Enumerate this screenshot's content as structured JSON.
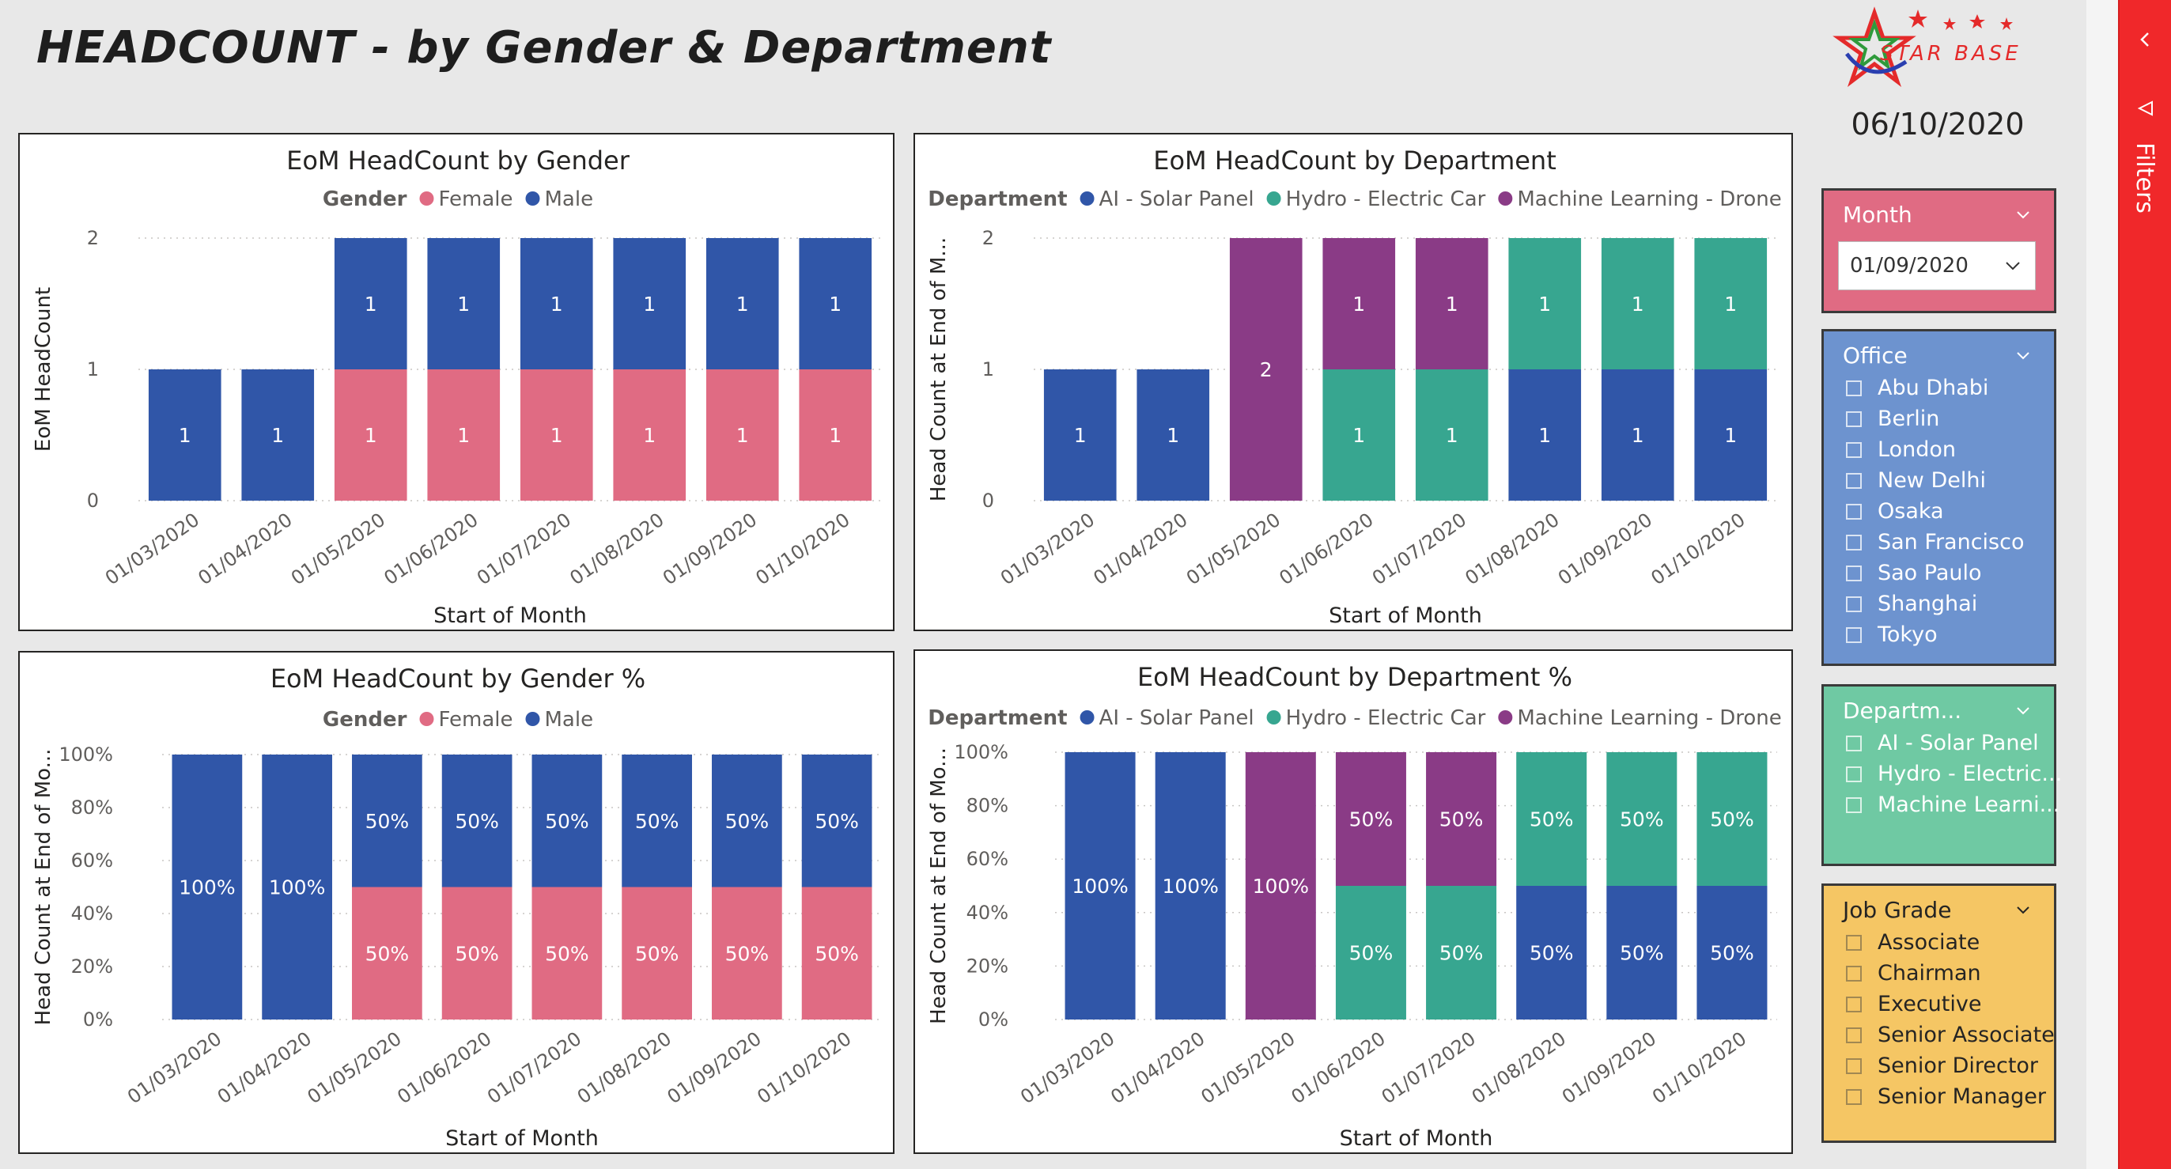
{
  "page": {
    "title": "HEADCOUNT - by Gender & Department",
    "date": "06/10/2020"
  },
  "logo": {
    "text": "STAR BASE"
  },
  "months": [
    "01/03/2020",
    "01/04/2020",
    "01/05/2020",
    "01/06/2020",
    "01/07/2020",
    "01/08/2020",
    "01/09/2020",
    "01/10/2020"
  ],
  "colors": {
    "female": "#e06b83",
    "male": "#3056a8",
    "ai": "#3056a8",
    "hydro": "#37a690",
    "ml": "#8a3b86"
  },
  "charts": {
    "gender": {
      "title": "EoM HeadCount by Gender",
      "legend_title": "Gender",
      "legend": [
        "Female",
        "Male"
      ],
      "ylabel": "EoM HeadCount",
      "xlabel": "Start of Month",
      "yticks": [
        "0",
        "1",
        "2"
      ]
    },
    "dept": {
      "title": "EoM HeadCount by Department",
      "legend_title": "Department",
      "legend": [
        "AI - Solar Panel",
        "Hydro - Electric Car",
        "Machine Learning - Drone"
      ],
      "ylabel": "Head Count at End of M...",
      "xlabel": "Start of Month",
      "yticks": [
        "0",
        "1",
        "2"
      ]
    },
    "gender_pct": {
      "title": "EoM HeadCount by Gender %",
      "legend_title": "Gender",
      "legend": [
        "Female",
        "Male"
      ],
      "ylabel": "Head Count at End of Mo...",
      "xlabel": "Start of Month",
      "yticks": [
        "0%",
        "20%",
        "40%",
        "60%",
        "80%",
        "100%"
      ]
    },
    "dept_pct": {
      "title": "EoM HeadCount by Department %",
      "legend_title": "Department",
      "legend": [
        "AI - Solar Panel",
        "Hydro - Electric Car",
        "Machine Learning - Drone"
      ],
      "ylabel": "Head Count at End of Mo...",
      "xlabel": "Start of Month",
      "yticks": [
        "0%",
        "20%",
        "40%",
        "60%",
        "80%",
        "100%"
      ]
    }
  },
  "chart_data": [
    {
      "type": "bar",
      "stacked": true,
      "title": "EoM HeadCount by Gender",
      "xlabel": "Start of Month",
      "ylabel": "EoM HeadCount",
      "categories": [
        "01/03/2020",
        "01/04/2020",
        "01/05/2020",
        "01/06/2020",
        "01/07/2020",
        "01/08/2020",
        "01/09/2020",
        "01/10/2020"
      ],
      "ylim": [
        0,
        2
      ],
      "legend": "top-center",
      "grid": true,
      "series": [
        {
          "name": "Female",
          "color": "#e06b83",
          "values": [
            0,
            0,
            1,
            1,
            1,
            1,
            1,
            1
          ]
        },
        {
          "name": "Male",
          "color": "#3056a8",
          "values": [
            1,
            1,
            1,
            1,
            1,
            1,
            1,
            1
          ]
        }
      ]
    },
    {
      "type": "bar",
      "stacked": true,
      "title": "EoM HeadCount by Department",
      "xlabel": "Start of Month",
      "ylabel": "Head Count at End of M...",
      "categories": [
        "01/03/2020",
        "01/04/2020",
        "01/05/2020",
        "01/06/2020",
        "01/07/2020",
        "01/08/2020",
        "01/09/2020",
        "01/10/2020"
      ],
      "ylim": [
        0,
        2
      ],
      "legend": "top-center",
      "grid": true,
      "series": [
        {
          "name": "AI - Solar Panel",
          "color": "#3056a8",
          "values": [
            1,
            1,
            0,
            0,
            0,
            1,
            1,
            1
          ]
        },
        {
          "name": "Hydro - Electric Car",
          "color": "#37a690",
          "values": [
            0,
            0,
            0,
            1,
            1,
            1,
            1,
            1
          ]
        },
        {
          "name": "Machine Learning - Drone",
          "color": "#8a3b86",
          "values": [
            0,
            0,
            2,
            1,
            1,
            0,
            0,
            0
          ]
        }
      ]
    },
    {
      "type": "bar",
      "stacked": true,
      "percent": true,
      "title": "EoM HeadCount by Gender %",
      "xlabel": "Start of Month",
      "ylabel": "Head Count at End of Mo...",
      "categories": [
        "01/03/2020",
        "01/04/2020",
        "01/05/2020",
        "01/06/2020",
        "01/07/2020",
        "01/08/2020",
        "01/09/2020",
        "01/10/2020"
      ],
      "ylim": [
        0,
        100
      ],
      "legend": "top-center",
      "grid": true,
      "series": [
        {
          "name": "Female",
          "color": "#e06b83",
          "values": [
            0,
            0,
            50,
            50,
            50,
            50,
            50,
            50
          ]
        },
        {
          "name": "Male",
          "color": "#3056a8",
          "values": [
            100,
            100,
            50,
            50,
            50,
            50,
            50,
            50
          ]
        }
      ]
    },
    {
      "type": "bar",
      "stacked": true,
      "percent": true,
      "title": "EoM HeadCount by Department %",
      "xlabel": "Start of Month",
      "ylabel": "Head Count at End of Mo...",
      "categories": [
        "01/03/2020",
        "01/04/2020",
        "01/05/2020",
        "01/06/2020",
        "01/07/2020",
        "01/08/2020",
        "01/09/2020",
        "01/10/2020"
      ],
      "ylim": [
        0,
        100
      ],
      "legend": "top-center",
      "grid": true,
      "series": [
        {
          "name": "AI - Solar Panel",
          "color": "#3056a8",
          "values": [
            100,
            100,
            0,
            0,
            0,
            50,
            50,
            50
          ]
        },
        {
          "name": "Hydro - Electric Car",
          "color": "#37a690",
          "values": [
            0,
            0,
            0,
            50,
            50,
            50,
            50,
            50
          ]
        },
        {
          "name": "Machine Learning - Drone",
          "color": "#8a3b86",
          "values": [
            0,
            0,
            100,
            50,
            50,
            0,
            0,
            0
          ]
        }
      ]
    }
  ],
  "slicers": {
    "month": {
      "title": "Month",
      "selected": "01/09/2020",
      "color": "#e06b83"
    },
    "office": {
      "title": "Office",
      "color": "#6d93cf",
      "items": [
        "Abu Dhabi",
        "Berlin",
        "London",
        "New Delhi",
        "Osaka",
        "San Francisco",
        "Sao Paulo",
        "Shanghai",
        "Tokyo"
      ]
    },
    "department": {
      "title": "Departm...",
      "color": "#6fc9a3",
      "items": [
        "AI - Solar Panel",
        "Hydro - Electric...",
        "Machine Learni..."
      ]
    },
    "job_grade": {
      "title": "Job Grade",
      "color": "#f5c664",
      "items": [
        "Associate",
        "Chairman",
        "Executive",
        "Senior Associate",
        "Senior Director",
        "Senior Manager"
      ]
    }
  },
  "filters_pane": {
    "label": "Filters"
  }
}
